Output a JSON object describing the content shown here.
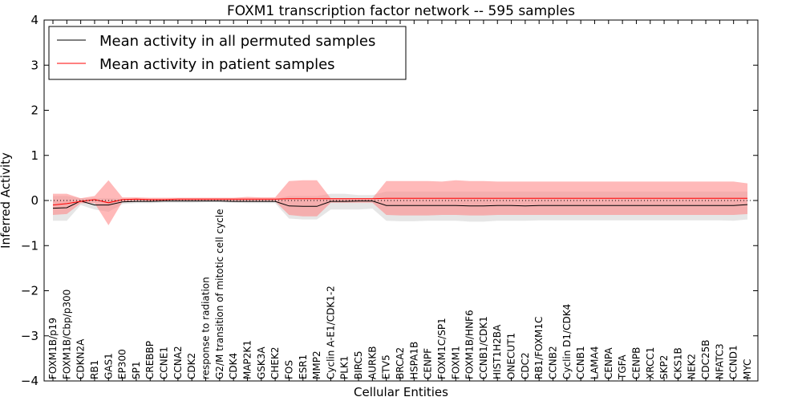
{
  "chart_data": {
    "type": "line",
    "title": "FOXM1 transcription factor network -- 595 samples",
    "xlabel": "Cellular Entities",
    "ylabel": "Inferred Activity",
    "ylim": [
      -4,
      4
    ],
    "yticks": [
      -4,
      -3,
      -2,
      -1,
      0,
      1,
      2,
      3,
      4
    ],
    "grid": false,
    "legend_location": "top-left",
    "reference_line": 0,
    "categories": [
      "FOXM1B/p19",
      "FOXM1B/Cbp/p300",
      "CDKN2A",
      "RB1",
      "GAS1",
      "EP300",
      "SP1",
      "CREBBP",
      "CCNE1",
      "CCNA2",
      "CDK2",
      "response to radiation",
      "G2/M transition of mitotic cell cycle",
      "CDK4",
      "MAP2K1",
      "GSK3A",
      "CHEK2",
      "FOS",
      "ESR1",
      "MMP2",
      "Cyclin A-E1/CDK1-2",
      "PLK1",
      "BIRC5",
      "AURKB",
      "ETV5",
      "BRCA2",
      "HSPA1B",
      "CENPF",
      "FOXM1C/SP1",
      "FOXM1",
      "FOXM1B/HNF6",
      "CCNB1/CDK1",
      "HIST1H2BA",
      "ONECUT1",
      "CDC2",
      "RB1/FOXM1C",
      "CCNB2",
      "Cyclin D1/CDK4",
      "CCNB1",
      "LAMA4",
      "CENPA",
      "TGFA",
      "CENPB",
      "XRCC1",
      "SKP2",
      "CKS1B",
      "NEK2",
      "CDC25B",
      "NFATC3",
      "CCND1",
      "MYC"
    ],
    "series": [
      {
        "name": "Mean activity in all permuted samples",
        "color": "#000000",
        "values": [
          -0.17,
          -0.16,
          -0.01,
          -0.1,
          -0.1,
          -0.03,
          -0.02,
          -0.02,
          -0.01,
          -0.01,
          -0.01,
          -0.01,
          -0.01,
          -0.02,
          -0.02,
          -0.02,
          -0.02,
          -0.12,
          -0.13,
          -0.13,
          -0.02,
          -0.02,
          -0.01,
          -0.01,
          -0.11,
          -0.11,
          -0.11,
          -0.11,
          -0.11,
          -0.11,
          -0.12,
          -0.12,
          -0.11,
          -0.11,
          -0.12,
          -0.11,
          -0.11,
          -0.11,
          -0.11,
          -0.11,
          -0.11,
          -0.11,
          -0.11,
          -0.11,
          -0.11,
          -0.11,
          -0.11,
          -0.11,
          -0.11,
          -0.11,
          -0.09
        ],
        "band_low": [
          -0.45,
          -0.45,
          -0.1,
          -0.2,
          -0.25,
          -0.08,
          -0.06,
          -0.06,
          -0.05,
          -0.05,
          -0.05,
          -0.04,
          -0.04,
          -0.05,
          -0.06,
          -0.06,
          -0.06,
          -0.4,
          -0.42,
          -0.42,
          -0.2,
          -0.2,
          -0.2,
          -0.18,
          -0.45,
          -0.46,
          -0.46,
          -0.45,
          -0.45,
          -0.45,
          -0.47,
          -0.47,
          -0.45,
          -0.45,
          -0.45,
          -0.44,
          -0.44,
          -0.44,
          -0.44,
          -0.44,
          -0.44,
          -0.44,
          -0.44,
          -0.44,
          -0.44,
          -0.44,
          -0.44,
          -0.44,
          -0.44,
          -0.45,
          -0.42
        ],
        "band_high": [
          0.1,
          0.1,
          0.05,
          0.05,
          0.05,
          0.04,
          0.03,
          0.03,
          0.03,
          0.03,
          0.03,
          0.03,
          0.03,
          0.03,
          0.03,
          0.03,
          0.03,
          0.1,
          0.1,
          0.1,
          0.15,
          0.15,
          0.12,
          0.12,
          0.2,
          0.2,
          0.2,
          0.2,
          0.2,
          0.2,
          0.2,
          0.2,
          0.2,
          0.2,
          0.2,
          0.2,
          0.2,
          0.2,
          0.2,
          0.2,
          0.2,
          0.2,
          0.2,
          0.2,
          0.2,
          0.2,
          0.2,
          0.2,
          0.2,
          0.2,
          0.2
        ]
      },
      {
        "name": "Mean activity in patient samples",
        "color": "#ff0000",
        "values": [
          -0.1,
          -0.07,
          -0.02,
          0.02,
          -0.05,
          0.02,
          0.03,
          0.02,
          0.02,
          0.03,
          0.03,
          0.03,
          0.03,
          0.03,
          0.03,
          0.03,
          0.03,
          0.04,
          0.04,
          0.04,
          0.04,
          0.04,
          0.04,
          0.04,
          0.05,
          0.05,
          0.05,
          0.05,
          0.05,
          0.05,
          0.05,
          0.05,
          0.05,
          0.05,
          0.05,
          0.05,
          0.05,
          0.05,
          0.05,
          0.05,
          0.05,
          0.05,
          0.05,
          0.05,
          0.05,
          0.05,
          0.05,
          0.05,
          0.05,
          0.05,
          0.05
        ],
        "band_low": [
          -0.32,
          -0.3,
          -0.06,
          -0.06,
          -0.55,
          -0.03,
          -0.02,
          -0.02,
          -0.01,
          -0.01,
          -0.01,
          -0.01,
          -0.01,
          -0.02,
          -0.02,
          -0.02,
          -0.02,
          -0.32,
          -0.35,
          -0.35,
          -0.05,
          -0.05,
          -0.05,
          -0.05,
          -0.32,
          -0.33,
          -0.33,
          -0.33,
          -0.32,
          -0.32,
          -0.33,
          -0.33,
          -0.32,
          -0.32,
          -0.32,
          -0.32,
          -0.32,
          -0.32,
          -0.32,
          -0.32,
          -0.32,
          -0.32,
          -0.32,
          -0.32,
          -0.32,
          -0.32,
          -0.32,
          -0.32,
          -0.32,
          -0.32,
          -0.3
        ],
        "band_high": [
          0.15,
          0.15,
          0.05,
          0.1,
          0.45,
          0.07,
          0.07,
          0.06,
          0.06,
          0.06,
          0.06,
          0.06,
          0.06,
          0.06,
          0.08,
          0.07,
          0.07,
          0.43,
          0.45,
          0.45,
          0.05,
          0.05,
          0.05,
          0.05,
          0.43,
          0.43,
          0.43,
          0.43,
          0.42,
          0.45,
          0.43,
          0.43,
          0.42,
          0.42,
          0.42,
          0.42,
          0.42,
          0.42,
          0.42,
          0.42,
          0.42,
          0.42,
          0.42,
          0.42,
          0.42,
          0.42,
          0.42,
          0.42,
          0.42,
          0.42,
          0.38
        ]
      }
    ]
  }
}
